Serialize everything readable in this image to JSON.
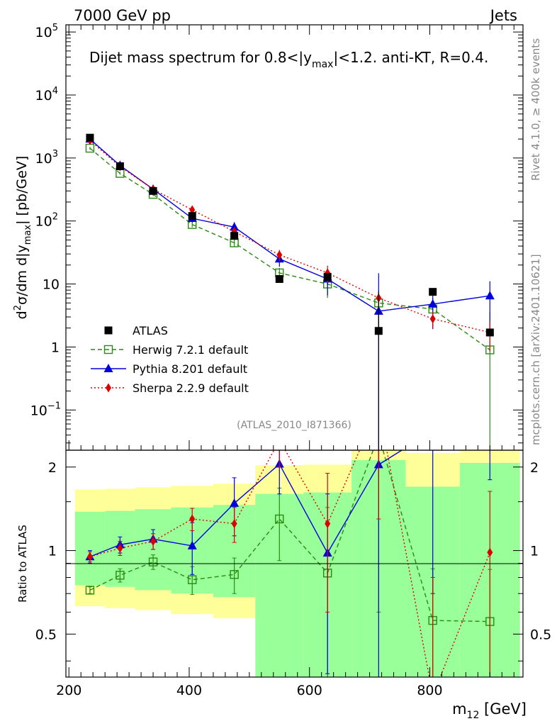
{
  "header": {
    "left": "7000 GeV pp",
    "right": "Jets",
    "side_top": "Rivet 4.1.0, ≥ 400k events",
    "side_bottom": "mcplots.cern.ch [arXiv:2401.10621]"
  },
  "chart_data": {
    "type": "scatter",
    "title_pre": "Dijet mass spectrum for 0.8<|y",
    "title_sub": "max",
    "title_post": "|<1.2.  anti-KT, R=0.4.",
    "analysis_tag": "(ATLAS_2010_I871366)",
    "xlabel_main": "m",
    "xlabel_sub": "12",
    "xlabel_unit": " [GeV]",
    "ylabel": "d²σ/dm d|y_max| [pb/GeV]",
    "ylabel_parts": [
      "d",
      "2",
      "σ/dm d|y",
      "max",
      "| [pb/GeV]"
    ],
    "ratio_ylabel": "Ratio to ATLAS",
    "x_range": [
      195,
      955
    ],
    "y_range_log": [
      0.023,
      130000
    ],
    "ratio_range": [
      0.35,
      2.3
    ],
    "x_ticks": [
      200,
      400,
      600,
      800
    ],
    "x_tick_labels": [
      "200",
      "400",
      "600",
      "800"
    ],
    "y_ticks": [
      {
        "v": 100000,
        "base": "10",
        "exp": "5"
      },
      {
        "v": 10000,
        "base": "10",
        "exp": "4"
      },
      {
        "v": 1000,
        "base": "10",
        "exp": "3"
      },
      {
        "v": 100,
        "base": "10",
        "exp": "2"
      },
      {
        "v": 10,
        "base": "10",
        "exp": ""
      },
      {
        "v": 1,
        "base": "1",
        "exp": ""
      },
      {
        "v": 0.1,
        "base": "10",
        "exp": "−1"
      }
    ],
    "ratio_ticks": [
      {
        "v": 2,
        "label": "2"
      },
      {
        "v": 1,
        "label": "1"
      },
      {
        "v": 0.5,
        "label": "0.5"
      }
    ],
    "bins": [
      {
        "lo": 210,
        "hi": 260,
        "x": 235
      },
      {
        "lo": 260,
        "hi": 310,
        "x": 285
      },
      {
        "lo": 310,
        "hi": 370,
        "x": 340
      },
      {
        "lo": 370,
        "hi": 440,
        "x": 405
      },
      {
        "lo": 440,
        "hi": 510,
        "x": 475
      },
      {
        "lo": 510,
        "hi": 590,
        "x": 550
      },
      {
        "lo": 590,
        "hi": 670,
        "x": 630
      },
      {
        "lo": 670,
        "hi": 760,
        "x": 715
      },
      {
        "lo": 760,
        "hi": 850,
        "x": 805
      },
      {
        "lo": 850,
        "hi": 950,
        "x": 900
      }
    ],
    "atlas": {
      "name": "ATLAS",
      "values": [
        2100,
        740,
        300,
        120,
        58,
        12,
        13,
        1.8,
        7.5,
        1.7
      ],
      "band_yellow": [
        [
          0.63,
          1.66
        ],
        [
          0.62,
          1.67
        ],
        [
          0.61,
          1.69
        ],
        [
          0.59,
          1.71
        ],
        [
          0.57,
          1.74
        ],
        [
          0.43,
          2.03
        ],
        [
          0.42,
          2.04
        ],
        [
          0.3,
          2.35
        ],
        [
          0.3,
          2.25
        ],
        [
          0.3,
          2.35
        ]
      ],
      "band_green": [
        [
          0.75,
          1.38
        ],
        [
          0.74,
          1.39
        ],
        [
          0.72,
          1.41
        ],
        [
          0.7,
          1.43
        ],
        [
          0.68,
          1.46
        ],
        [
          0.3,
          1.6
        ],
        [
          0.3,
          1.62
        ],
        [
          0.3,
          2.12
        ],
        [
          0.3,
          1.7
        ],
        [
          0.3,
          2.07
        ]
      ]
    },
    "series": [
      {
        "name": "Herwig 7.2.1 default",
        "color": "#2a8a14",
        "marker": "open-square",
        "line": "dashed",
        "values": [
          1430,
          570,
          265,
          88,
          45,
          15,
          10,
          5,
          4,
          0.9
        ],
        "ratio": [
          0.72,
          0.815,
          0.91,
          0.785,
          0.82,
          1.3,
          0.83,
          2.6,
          0.56,
          0.555
        ],
        "ratio_err": [
          0.02,
          0.045,
          0.055,
          0.09,
          0.12,
          0.38,
          0.6,
          2.0,
          0.3,
          0.3
        ]
      },
      {
        "name": "Pythia 8.201 default",
        "color": "#0000dd",
        "marker": "triangle",
        "line": "solid",
        "values": [
          2000,
          760,
          320,
          110,
          80,
          25,
          12,
          3.7,
          4.8,
          6.5
        ],
        "ratio": [
          0.95,
          1.05,
          1.1,
          1.04,
          1.48,
          2.05,
          0.98,
          2.04,
          2.7,
          3.8
        ],
        "ratio_err": [
          0.05,
          0.07,
          0.09,
          0.22,
          0.35,
          0.45,
          0.62,
          2.0,
          2.0,
          2.0
        ]
      },
      {
        "name": "Sherpa 2.2.9 default",
        "color": "#dd0000",
        "marker": "diamond",
        "line": "dotted",
        "values": [
          1900,
          730,
          320,
          150,
          68,
          29,
          15,
          6,
          2.8,
          1.7
        ],
        "ratio": [
          0.95,
          1.02,
          1.08,
          1.3,
          1.25,
          2.5,
          1.25,
          3.3,
          0.3,
          0.985
        ],
        "ratio_err": [
          0.04,
          0.06,
          0.07,
          0.12,
          0.18,
          0.5,
          0.65,
          2.0,
          0.5,
          0.65
        ]
      }
    ],
    "main_errors": {
      "Herwig 7.2.1 default": [
        0.05,
        0.05,
        0.06,
        0.1,
        0.12,
        0.2,
        0.4,
        0.6,
        0.5,
        3.0
      ],
      "Pythia 8.201 default": [
        0.05,
        0.05,
        0.1,
        0.15,
        0.2,
        0.25,
        0.45,
        3.0,
        0.6,
        0.7
      ],
      "Sherpa 2.2.9 default": [
        0.05,
        0.05,
        0.06,
        0.08,
        0.15,
        0.2,
        0.3,
        0.25,
        0.3,
        0.5
      ]
    }
  }
}
